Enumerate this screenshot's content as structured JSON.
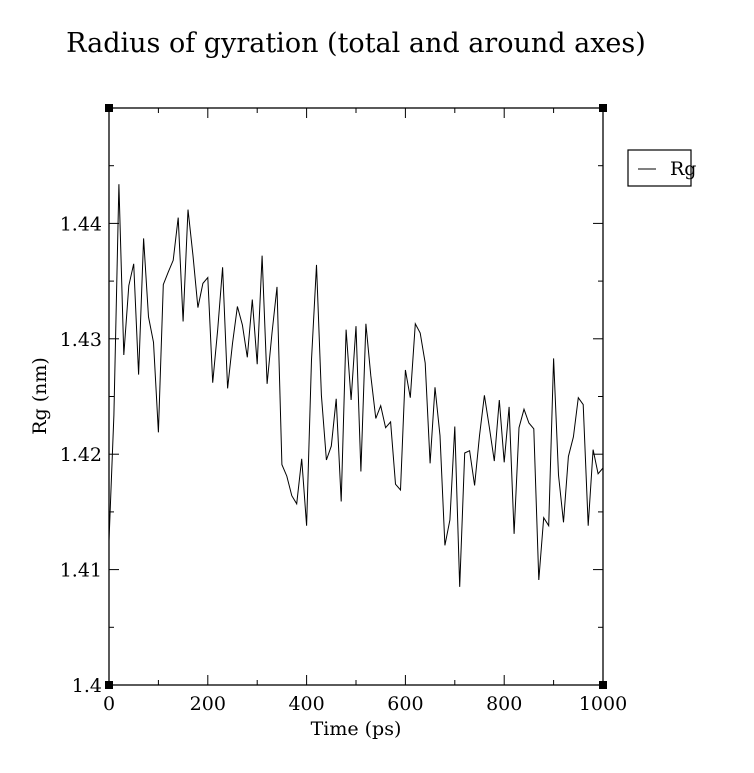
{
  "chart_data": {
    "type": "line",
    "title": "Radius of gyration (total and around axes)",
    "xlabel": "Time (ps)",
    "ylabel": "Rg (nm)",
    "xlim": [
      0,
      1000
    ],
    "ylim": [
      1.4,
      1.45
    ],
    "x_ticks": [
      0,
      200,
      400,
      600,
      800,
      1000
    ],
    "x_tick_labels": [
      "0",
      "200",
      "400",
      "600",
      "800",
      "1000"
    ],
    "y_ticks": [
      1.4,
      1.41,
      1.42,
      1.43,
      1.44
    ],
    "y_tick_labels": [
      "1.4",
      "1.41",
      "1.42",
      "1.43",
      "1.44"
    ],
    "grid": false,
    "legend_position": "top-right, outside plot",
    "line_color": "#000000",
    "series": [
      {
        "name": "Rg",
        "x": [
          0,
          10,
          20,
          30,
          40,
          50,
          60,
          70,
          80,
          90,
          100,
          110,
          120,
          130,
          140,
          150,
          160,
          170,
          180,
          190,
          200,
          210,
          220,
          230,
          240,
          250,
          260,
          270,
          280,
          290,
          300,
          310,
          320,
          330,
          340,
          350,
          360,
          370,
          380,
          390,
          400,
          410,
          420,
          430,
          440,
          450,
          460,
          470,
          480,
          490,
          500,
          510,
          520,
          530,
          540,
          550,
          560,
          570,
          580,
          590,
          600,
          610,
          620,
          630,
          640,
          650,
          660,
          670,
          680,
          690,
          700,
          710,
          720,
          730,
          740,
          750,
          760,
          770,
          780,
          790,
          800,
          810,
          820,
          830,
          840,
          850,
          860,
          870,
          880,
          890,
          900,
          910,
          920,
          930,
          940,
          950,
          960,
          970,
          980,
          990,
          1000
        ],
        "y": [
          1.4125,
          1.4234,
          1.4434,
          1.4286,
          1.4346,
          1.4365,
          1.4269,
          1.4387,
          1.4319,
          1.4297,
          1.4219,
          1.4347,
          1.4358,
          1.4368,
          1.4405,
          1.4315,
          1.4412,
          1.4372,
          1.4327,
          1.4348,
          1.4353,
          1.4262,
          1.4308,
          1.4362,
          1.4257,
          1.4296,
          1.4328,
          1.4312,
          1.4284,
          1.4334,
          1.4278,
          1.4372,
          1.4261,
          1.4305,
          1.4345,
          1.4191,
          1.4181,
          1.4164,
          1.4157,
          1.4196,
          1.4138,
          1.4282,
          1.4364,
          1.4251,
          1.4195,
          1.4207,
          1.4248,
          1.4159,
          1.4308,
          1.4247,
          1.4311,
          1.4185,
          1.4313,
          1.4268,
          1.4231,
          1.4242,
          1.4223,
          1.4228,
          1.4174,
          1.4169,
          1.4273,
          1.4249,
          1.4313,
          1.4305,
          1.4279,
          1.4192,
          1.4258,
          1.4216,
          1.4121,
          1.4143,
          1.4224,
          1.4085,
          1.4201,
          1.4203,
          1.4173,
          1.4216,
          1.4251,
          1.4223,
          1.4194,
          1.4247,
          1.4193,
          1.4241,
          1.4131,
          1.4223,
          1.4239,
          1.4227,
          1.4222,
          1.4091,
          1.4145,
          1.4138,
          1.4283,
          1.4182,
          1.4141,
          1.4198,
          1.4215,
          1.4249,
          1.4243,
          1.4138,
          1.4204,
          1.4183,
          1.4188
        ]
      }
    ]
  }
}
